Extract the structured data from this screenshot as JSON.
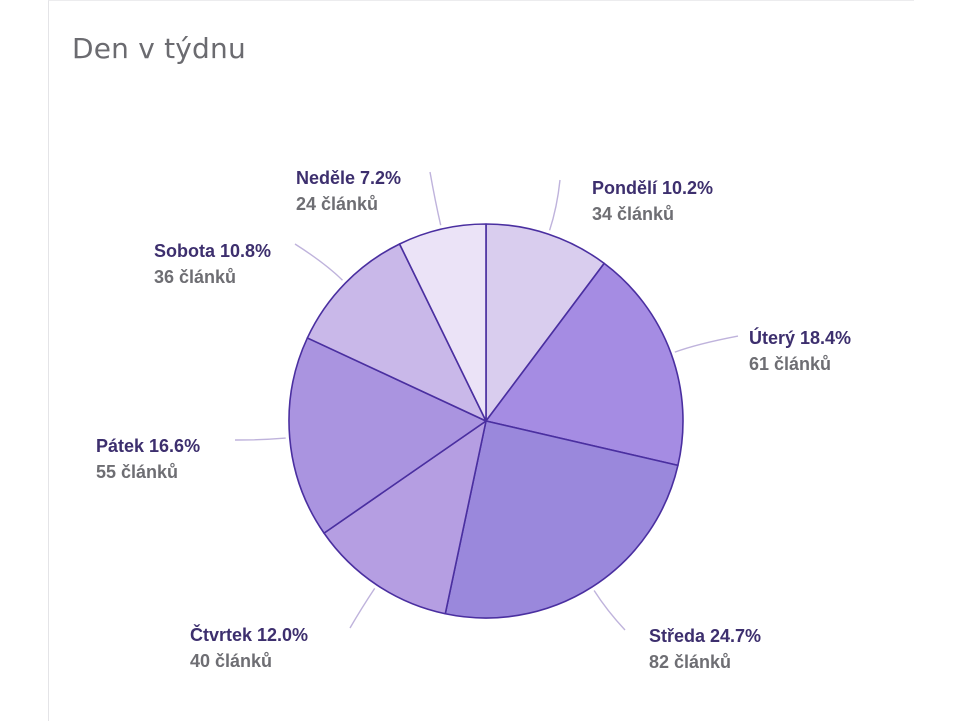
{
  "card": {
    "title": "Den v týdnu"
  },
  "chart_data": {
    "type": "pie",
    "title": "Den v týdnu",
    "count_unit": "článků",
    "slices": [
      {
        "label": "Pondělí",
        "percent": "10.2%",
        "count": 34,
        "color": "#d9cdee"
      },
      {
        "label": "Úterý",
        "percent": "18.4%",
        "count": 61,
        "color": "#a58ce3"
      },
      {
        "label": "Středa",
        "percent": "24.7%",
        "count": 82,
        "color": "#9a88dc"
      },
      {
        "label": "Čtvrtek",
        "percent": "12.0%",
        "count": 40,
        "color": "#b59ee2"
      },
      {
        "label": "Pátek",
        "percent": "16.6%",
        "count": 55,
        "color": "#aa94e0"
      },
      {
        "label": "Sobota",
        "percent": "10.8%",
        "count": 36,
        "color": "#c9b8e9"
      },
      {
        "label": "Neděle",
        "percent": "7.2%",
        "count": 24,
        "color": "#ebe3f7"
      }
    ],
    "stroke_color": "#4a2fa0",
    "leader_color": "#bfb3dc"
  }
}
